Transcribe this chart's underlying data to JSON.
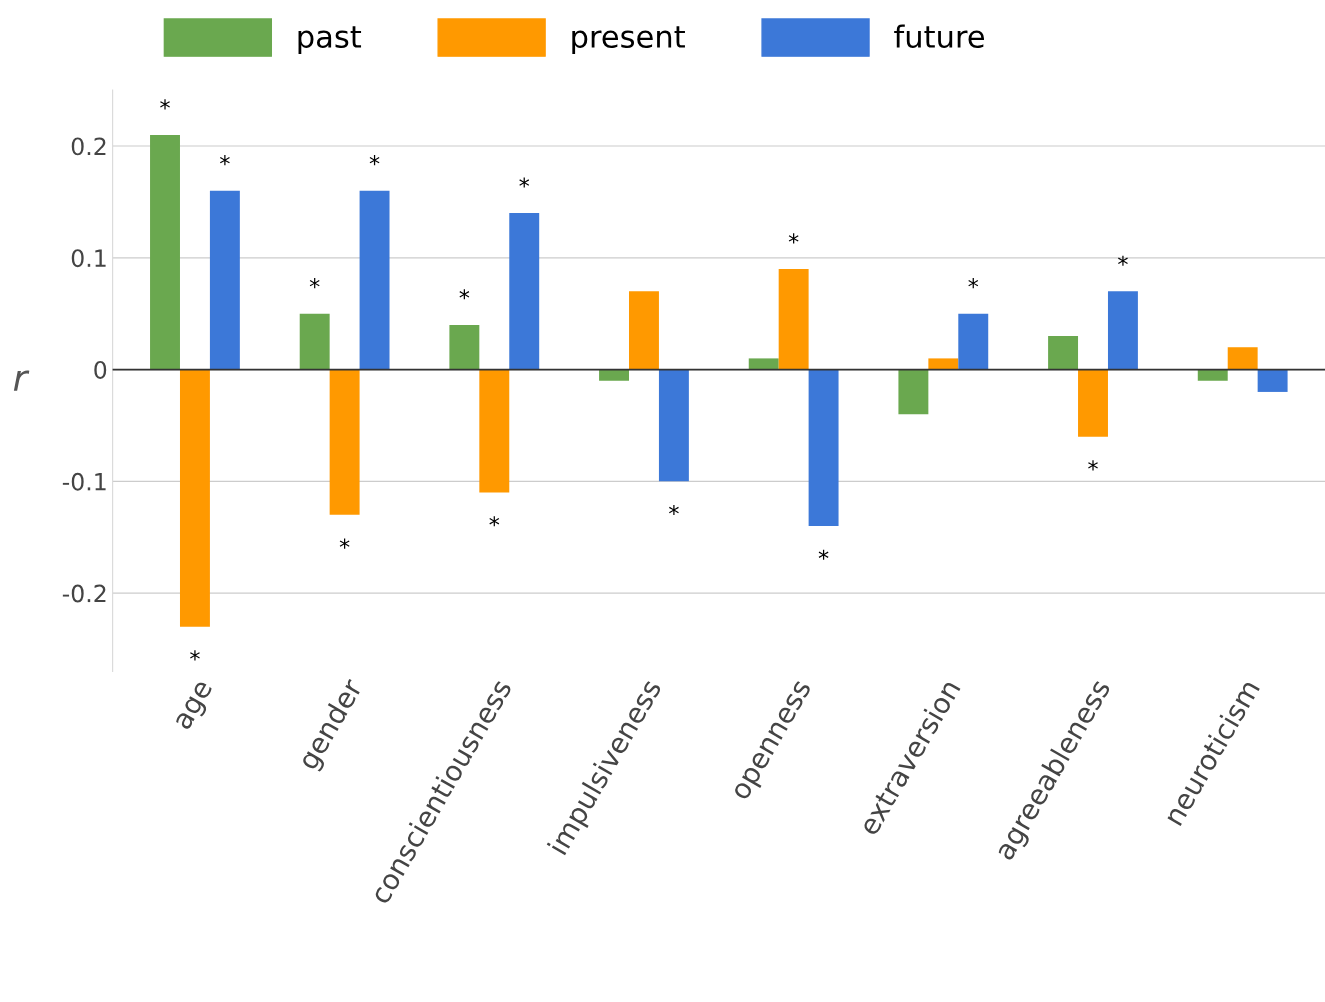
{
  "chart_data": {
    "type": "bar",
    "ylabel": "r",
    "categories": [
      "age",
      "gender",
      "conscientiousness",
      "impulsiveness",
      "openness",
      "extraversion",
      "agreeableness",
      "neuroticism"
    ],
    "series": [
      {
        "name": "past",
        "color": "#6aa84f",
        "values": [
          0.21,
          0.05,
          0.04,
          -0.01,
          0.01,
          -0.04,
          0.03,
          -0.01
        ],
        "value_labels": [
          "*",
          "*",
          "*",
          null,
          null,
          null,
          null,
          null
        ]
      },
      {
        "name": "present",
        "color": "#ff9900",
        "values": [
          -0.23,
          -0.13,
          -0.11,
          0.07,
          0.09,
          0.01,
          -0.06,
          0.02
        ],
        "value_labels": [
          "*",
          "*",
          "*",
          null,
          "*",
          null,
          "*",
          null
        ]
      },
      {
        "name": "future",
        "color": "#3c78d8",
        "values": [
          0.16,
          0.16,
          0.14,
          -0.1,
          -0.14,
          0.05,
          0.07,
          -0.02
        ],
        "value_labels": [
          "*",
          "*",
          "*",
          "*",
          "*",
          "*",
          "*",
          null
        ]
      }
    ],
    "ylim": [
      -0.27,
      0.25
    ],
    "yticks": [
      -0.2,
      -0.1,
      0,
      0.1,
      0.2
    ],
    "grid": "y",
    "legend": "top"
  }
}
